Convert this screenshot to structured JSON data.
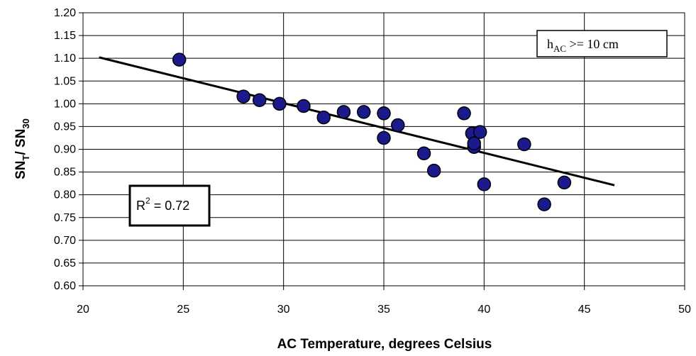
{
  "chart_data": {
    "type": "scatter",
    "title": "",
    "xlabel": "AC Temperature, degrees Celsius",
    "ylabel": {
      "main": "SN",
      "sub1": "T",
      "mid": "/ SN",
      "sub2": "30"
    },
    "xlim": [
      20,
      50
    ],
    "ylim": [
      0.6,
      1.2
    ],
    "x_ticks": [
      "20",
      "25",
      "30",
      "35",
      "40",
      "45",
      "50"
    ],
    "y_ticks": [
      "0.60",
      "0.65",
      "0.70",
      "0.75",
      "0.80",
      "0.85",
      "0.90",
      "0.95",
      "1.00",
      "1.05",
      "1.10",
      "1.15",
      "1.20"
    ],
    "grid": true,
    "marker_color": "#1a1a8c",
    "points": [
      {
        "x": 24.8,
        "y": 1.097
      },
      {
        "x": 28.0,
        "y": 1.016
      },
      {
        "x": 28.8,
        "y": 1.008
      },
      {
        "x": 29.8,
        "y": 1.0
      },
      {
        "x": 31.0,
        "y": 0.995
      },
      {
        "x": 32.0,
        "y": 0.97
      },
      {
        "x": 33.0,
        "y": 0.982
      },
      {
        "x": 34.0,
        "y": 0.982
      },
      {
        "x": 35.0,
        "y": 0.979
      },
      {
        "x": 35.0,
        "y": 0.925
      },
      {
        "x": 35.7,
        "y": 0.953
      },
      {
        "x": 37.0,
        "y": 0.891
      },
      {
        "x": 37.5,
        "y": 0.853
      },
      {
        "x": 39.0,
        "y": 0.979
      },
      {
        "x": 39.4,
        "y": 0.935
      },
      {
        "x": 39.5,
        "y": 0.905
      },
      {
        "x": 39.5,
        "y": 0.913
      },
      {
        "x": 39.8,
        "y": 0.938
      },
      {
        "x": 40.0,
        "y": 0.823
      },
      {
        "x": 42.0,
        "y": 0.911
      },
      {
        "x": 43.0,
        "y": 0.779
      },
      {
        "x": 44.0,
        "y": 0.827
      }
    ],
    "trendline": {
      "x": [
        20.8,
        46.5
      ],
      "y": [
        1.102,
        0.821
      ]
    },
    "annotations": {
      "condition": {
        "main": "h",
        "sub": "AC",
        "rest": " >= 10 cm"
      },
      "r2": {
        "main": "R",
        "sup": "2",
        "rest": " = 0.72"
      }
    }
  }
}
